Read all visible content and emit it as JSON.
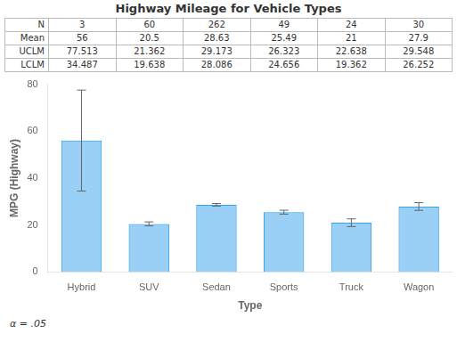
{
  "chart_data": {
    "type": "bar",
    "title": "Highway Mileage for Vehicle Types",
    "xlabel": "Type",
    "ylabel": "MPG (Highway)",
    "categories": [
      "Hybrid",
      "SUV",
      "Sedan",
      "Sports",
      "Truck",
      "Wagon"
    ],
    "values": [
      56,
      20.5,
      28.63,
      25.49,
      21,
      27.9
    ],
    "uclm": [
      77.513,
      21.362,
      29.173,
      26.323,
      22.638,
      29.548
    ],
    "lclm": [
      34.487,
      19.638,
      28.086,
      24.656,
      19.362,
      26.252
    ],
    "table": {
      "row_labels": [
        "N",
        "Mean",
        "UCLM",
        "LCLM"
      ],
      "rows": [
        [
          3,
          60,
          262,
          49,
          24,
          30
        ],
        [
          56,
          20.5,
          28.63,
          25.49,
          21,
          27.9
        ],
        [
          77.513,
          21.362,
          29.173,
          26.323,
          22.638,
          29.548
        ],
        [
          34.487,
          19.638,
          28.086,
          24.656,
          19.362,
          26.252
        ]
      ]
    },
    "annotations": [
      "α = .05"
    ],
    "ylim": [
      0,
      80
    ],
    "yticks": [
      0,
      20,
      40,
      60,
      80
    ],
    "grid": false
  }
}
